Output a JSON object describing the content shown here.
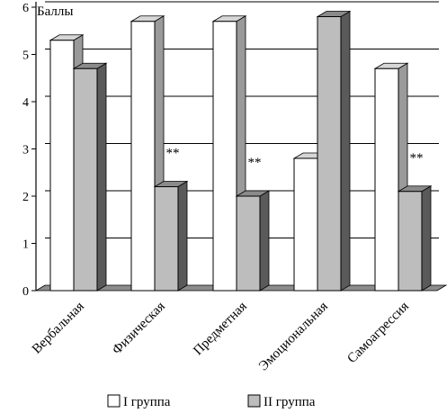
{
  "chart_data": {
    "type": "bar",
    "ylabel": "Баллы",
    "ylim": [
      0,
      6
    ],
    "yticks": [
      "0",
      "1",
      "2",
      "3",
      "4",
      "5",
      "6"
    ],
    "grid": true,
    "categories": [
      "Вербальная",
      "Физическая",
      "Предметная",
      "Эмоциональная",
      "Самоагрессия"
    ],
    "series": [
      {
        "name": "I группа",
        "values": [
          5.3,
          5.7,
          5.7,
          2.8,
          4.7
        ],
        "color": "#ffffff"
      },
      {
        "name": "II группа",
        "values": [
          4.7,
          2.2,
          2.0,
          5.8,
          2.1
        ],
        "color": "#bdbdbd"
      }
    ],
    "annotations": [
      {
        "category": "Физическая",
        "text": "**"
      },
      {
        "category": "Предметная",
        "text": "**"
      },
      {
        "category": "Эмоциональная",
        "text": "**"
      },
      {
        "category": "Самоагрессия",
        "text": "**"
      }
    ],
    "legend_position": "bottom"
  }
}
